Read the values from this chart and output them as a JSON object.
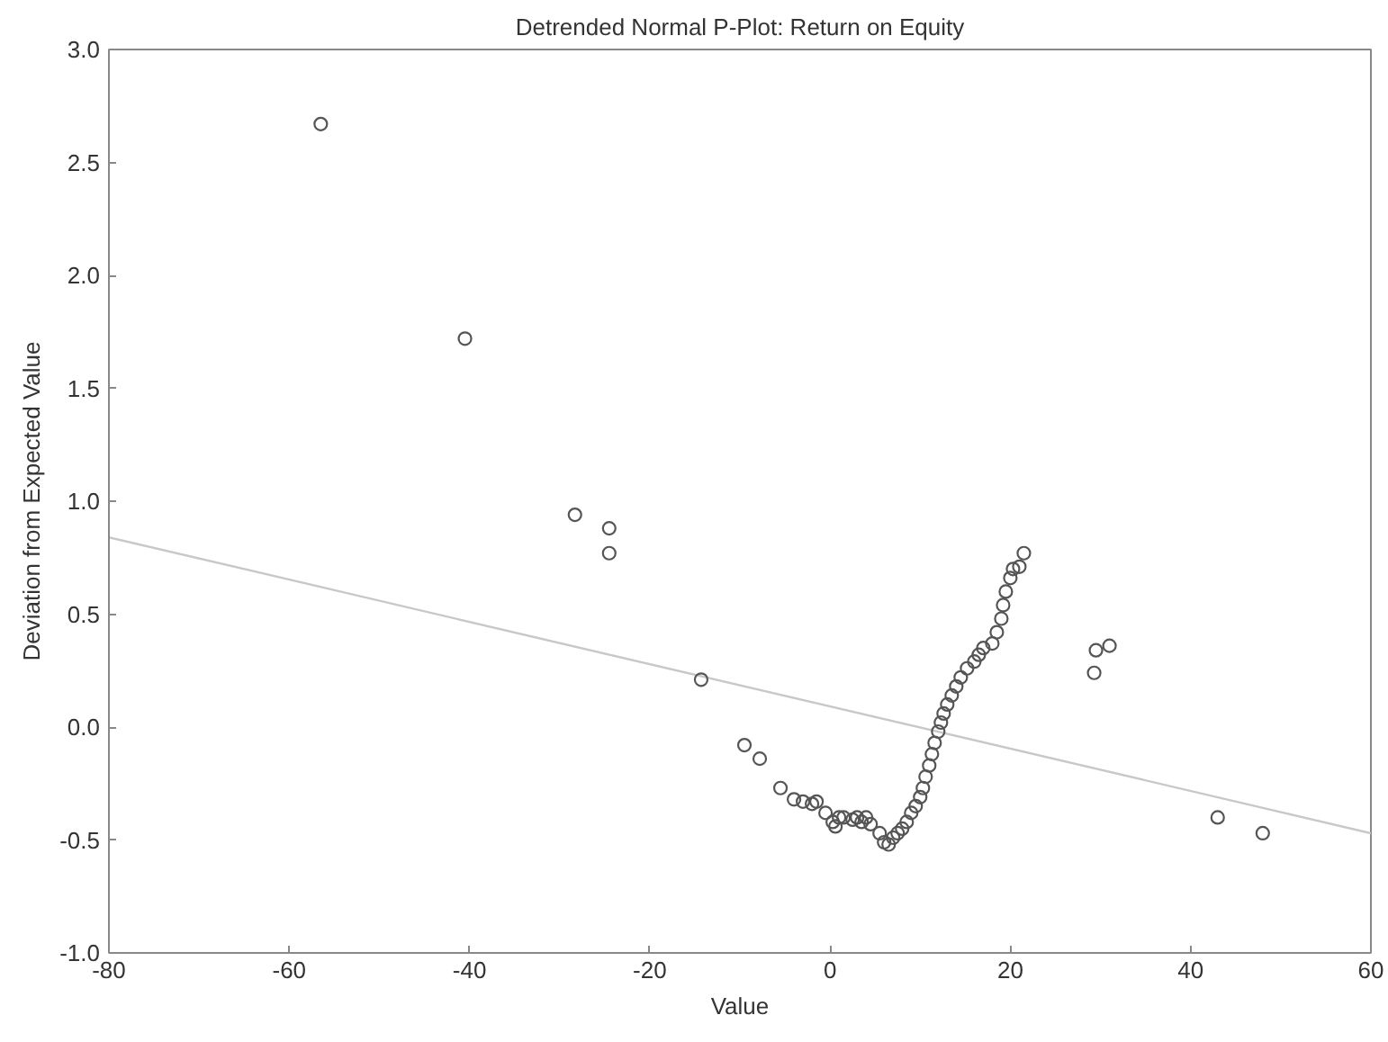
{
  "chart_data": {
    "type": "scatter",
    "title": "Detrended Normal P-Plot: Return on Equity",
    "xlabel": "Value",
    "ylabel": "Deviation from Expected Value",
    "xlim": [
      -80,
      60
    ],
    "xticks": [
      -80,
      -60,
      -40,
      -20,
      0,
      20,
      40,
      60
    ],
    "ylim": [
      -1.0,
      3.0
    ],
    "yticks": [
      {
        "value": -1.0,
        "label": "-1.0"
      },
      {
        "value": -0.5,
        "label": "-0.5"
      },
      {
        "value": 0.0,
        "label": "0.0"
      },
      {
        "value": 0.5,
        "label": "0.5"
      },
      {
        "value": 1.0,
        "label": "1.0"
      },
      {
        "value": 1.5,
        "label": "1.5"
      },
      {
        "value": 2.0,
        "label": "2.0"
      },
      {
        "value": 2.5,
        "label": "2.5"
      },
      {
        "value": 3.0,
        "label": "3.0"
      }
    ],
    "grid": false,
    "marker": "circle",
    "series": [
      {
        "color": "#555555",
        "x": [
          -56.5,
          -40.5,
          -28.3,
          -24.5,
          -24.5,
          -14.3,
          -9.5,
          -7.8,
          -5.5,
          -4,
          -3,
          -2,
          -1.5,
          -0.5,
          0.3,
          0.6,
          1,
          1.5,
          2.5,
          3,
          3.5,
          4,
          4.5,
          5.5,
          6,
          6.5,
          7,
          7.5,
          8,
          8.5,
          9,
          9.5,
          10,
          10.3,
          10.6,
          11,
          11.3,
          11.6,
          12,
          12.3,
          12.6,
          13,
          13.5,
          14,
          14.5,
          15.2,
          16,
          16.5,
          17,
          18,
          18.5,
          19,
          19.2,
          19.5,
          20,
          20.3,
          21,
          21.5,
          29.5,
          31,
          29.3,
          43,
          48
        ],
        "values": [
          2.67,
          1.72,
          0.94,
          0.88,
          0.77,
          0.21,
          -0.08,
          -0.14,
          -0.27,
          -0.32,
          -0.33,
          -0.34,
          -0.33,
          -0.38,
          -0.42,
          -0.44,
          -0.4,
          -0.4,
          -0.41,
          -0.4,
          -0.42,
          -0.4,
          -0.43,
          -0.47,
          -0.51,
          -0.52,
          -0.49,
          -0.47,
          -0.45,
          -0.42,
          -0.38,
          -0.35,
          -0.31,
          -0.27,
          -0.22,
          -0.17,
          -0.12,
          -0.07,
          -0.02,
          0.02,
          0.06,
          0.1,
          0.14,
          0.18,
          0.22,
          0.26,
          0.29,
          0.32,
          0.35,
          0.37,
          0.42,
          0.48,
          0.54,
          0.6,
          0.66,
          0.7,
          0.71,
          0.77,
          0.34,
          0.36,
          0.24,
          -0.4,
          -0.47
        ]
      },
      {
        "type": "line",
        "marker": "none",
        "color": "#c8c8c8",
        "x": [
          -80,
          60
        ],
        "values": [
          0.84,
          -0.47
        ]
      }
    ]
  }
}
